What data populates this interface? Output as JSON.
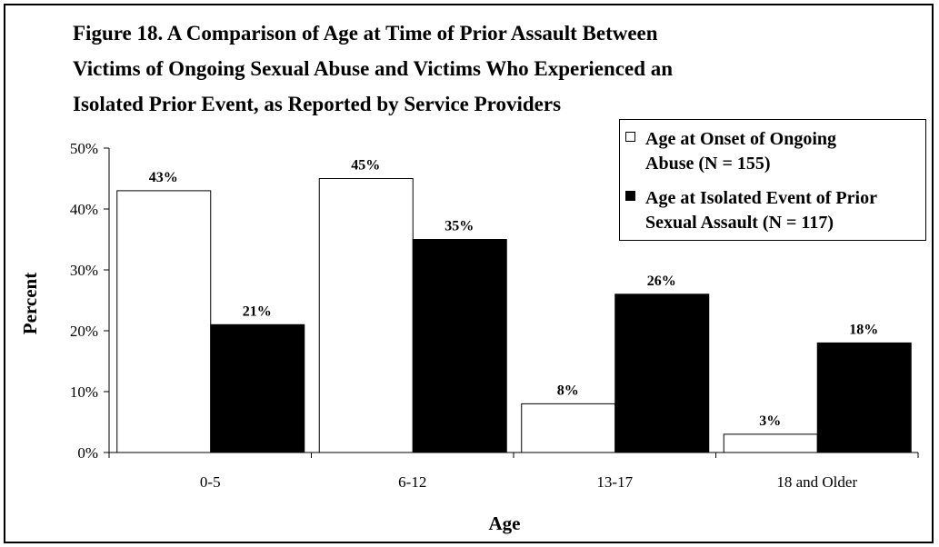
{
  "title_lines": [
    "Figure 18.  A Comparison of Age at Time of Prior Assault Between",
    "Victims of Ongoing Sexual Abuse and Victims Who Experienced an",
    "Isolated Prior Event, as Reported by Service Providers"
  ],
  "chart_data": {
    "type": "bar",
    "title": "Figure 18.  A Comparison of Age at Time of Prior Assault Between Victims of Ongoing Sexual Abuse and Victims Who Experienced an Isolated Prior Event, as Reported by Service Providers",
    "xlabel": "Age",
    "ylabel": "Percent",
    "categories": [
      "0-5",
      "6-12",
      "13-17",
      "18 and Older"
    ],
    "ylim": [
      0,
      50
    ],
    "yticks": [
      "0%",
      "10%",
      "20%",
      "30%",
      "40%",
      "50%"
    ],
    "grid": false,
    "legend_position": "top-right",
    "series": [
      {
        "name": "Age at Onset of Ongoing Abuse (N = 155)",
        "legend_lines": [
          "Age at Onset of Ongoing",
          "Abuse (N = 155)"
        ],
        "values": [
          43,
          45,
          8,
          3
        ],
        "labels": [
          "43%",
          "45%",
          "8%",
          "3%"
        ],
        "color": "#ffffff"
      },
      {
        "name": "Age at Isolated Event of Prior Sexual Assault (N = 117)",
        "legend_lines": [
          "Age at Isolated Event of Prior",
          "Sexual Assault (N = 117)"
        ],
        "values": [
          21,
          35,
          26,
          18
        ],
        "labels": [
          "21%",
          "35%",
          "26%",
          "18%"
        ],
        "color": "#000000"
      }
    ]
  }
}
